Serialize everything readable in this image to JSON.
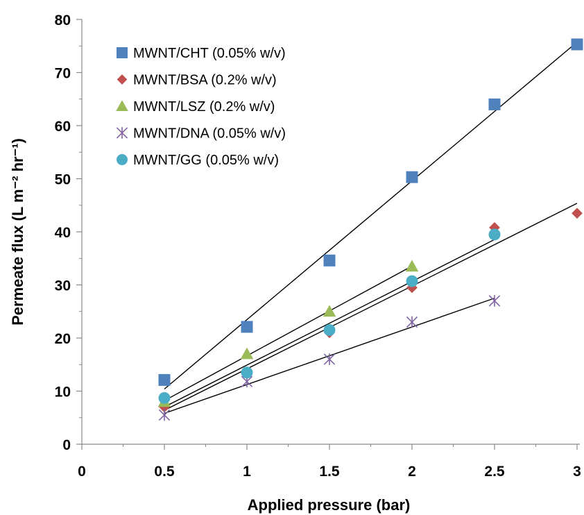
{
  "chart_data": {
    "type": "scatter",
    "title": "",
    "xlabel": "Applied pressure (bar)",
    "ylabel": "Permeate flux (L m⁻² hr⁻¹)",
    "xlim": [
      0,
      3
    ],
    "ylim": [
      0,
      80
    ],
    "xticks": [
      "0",
      "0.5",
      "1",
      "1.5",
      "2",
      "2.5",
      "3"
    ],
    "yticks": [
      "0",
      "10",
      "20",
      "30",
      "40",
      "50",
      "60",
      "70",
      "80"
    ],
    "grid": false,
    "legend_position": "top-left",
    "trendlines": "linear",
    "series": [
      {
        "name": "MWNT/CHT (0.05% w/v)",
        "marker": "square",
        "color": "#4F81BD",
        "x": [
          0.5,
          1,
          1.5,
          2,
          2.5,
          3
        ],
        "y": [
          12.1,
          22.1,
          34.6,
          50.3,
          64.0,
          75.3
        ]
      },
      {
        "name": "MWNT/BSA (0.2% w/v)",
        "marker": "diamond",
        "color": "#C0504D",
        "x": [
          0.5,
          1,
          1.5,
          2,
          2.5,
          3
        ],
        "y": [
          7.0,
          13.5,
          21.0,
          29.5,
          40.8,
          43.5
        ]
      },
      {
        "name": "MWNT/LSZ (0.2% w/v)",
        "marker": "triangle",
        "color": "#9BBB59",
        "x": [
          0.5,
          1,
          1.5,
          2
        ],
        "y": [
          8.0,
          17.0,
          25.0,
          33.5
        ]
      },
      {
        "name": "MWNT/DNA (0.05% w/v)",
        "marker": "star",
        "color": "#8064A2",
        "x": [
          0.5,
          1,
          1.5,
          2,
          2.5
        ],
        "y": [
          5.5,
          11.8,
          16.0,
          23.0,
          27.0
        ]
      },
      {
        "name": "MWNT/GG (0.05% w/v)",
        "marker": "circle",
        "color": "#4BACC6",
        "x": [
          0.5,
          1,
          1.5,
          2,
          2.5
        ],
        "y": [
          8.7,
          13.5,
          21.5,
          30.7,
          39.5
        ]
      }
    ]
  }
}
